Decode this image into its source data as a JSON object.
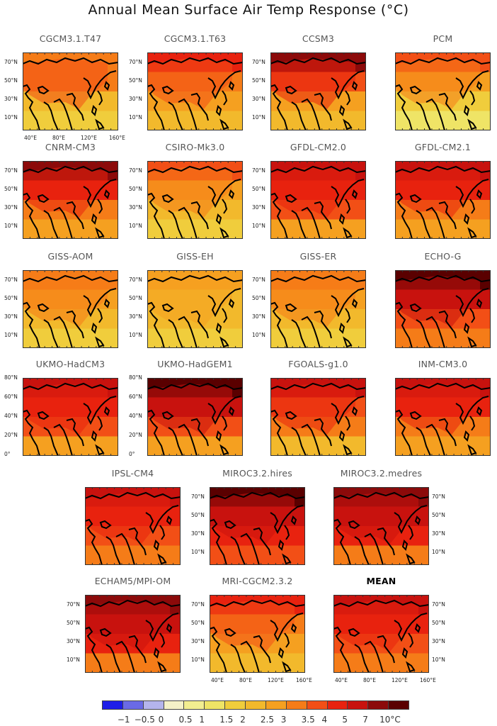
{
  "title": "Annual Mean Surface Air Temp Response (°C)",
  "colors": {
    "scale": [
      "#1e1ee8",
      "#6a6ae6",
      "#b4b4ec",
      "#f4f1c8",
      "#f2ee90",
      "#efe466",
      "#f0cd3c",
      "#f2b92c",
      "#f5a020",
      "#f57c18",
      "#f24f16",
      "#e8220f",
      "#c8120e",
      "#8c0a0a",
      "#5a0000"
    ],
    "coast": "#000000"
  },
  "colorbar": {
    "labels": [
      "−1",
      "−0.5",
      "0",
      "0.5",
      "1",
      "1.5",
      "2",
      "2.5",
      "3",
      "3.5",
      "4",
      "5",
      "7",
      "10°C"
    ]
  },
  "chart_data": [
    {
      "type": "heatmap",
      "title": "CGCM3.1.T47",
      "ylabels": [
        "70°N",
        "50°N",
        "30°N",
        "10°N"
      ],
      "xlabels": [
        "40°E",
        "80°E",
        "120°E",
        "160°E"
      ],
      "levels": [
        3,
        3,
        2,
        1.5
      ],
      "mean_level": "2-3"
    },
    {
      "type": "heatmap",
      "title": "CGCM3.1.T63",
      "ylabels": [
        "70°N",
        "50°N",
        "30°N",
        "10°N"
      ],
      "xlabels": [],
      "levels": [
        4,
        3,
        2.5,
        2
      ],
      "mean_level": "2.5-3.5"
    },
    {
      "type": "heatmap",
      "title": "CCSM3",
      "ylabels": [
        "70°N",
        "50°N",
        "30°N",
        "10°N"
      ],
      "xlabels": [],
      "levels": [
        7,
        3.5,
        2.5,
        2
      ],
      "mean_level": "2.5-4"
    },
    {
      "type": "heatmap",
      "title": "PCM",
      "ylabels": [],
      "xlabels": [],
      "levels": [
        3.5,
        2.5,
        1.5,
        1
      ],
      "mean_level": "1.5-2.5"
    },
    {
      "type": "heatmap",
      "title": "CNRM-CM3",
      "ylabels": [
        "70°N",
        "50°N",
        "30°N",
        "10°N"
      ],
      "xlabels": [],
      "levels": [
        7,
        4,
        3,
        2.5
      ],
      "mean_level": "3-4"
    },
    {
      "type": "heatmap",
      "title": "CSIRO-Mk3.0",
      "ylabels": [
        "70°N",
        "50°N",
        "30°N",
        "10°N"
      ],
      "xlabels": [],
      "levels": [
        3.5,
        2.5,
        2,
        1.5
      ],
      "mean_level": "2-3"
    },
    {
      "type": "heatmap",
      "title": "GFDL-CM2.0",
      "ylabels": [
        "70°N",
        "50°N",
        "30°N",
        "10°N"
      ],
      "xlabels": [],
      "levels": [
        5,
        4,
        3.5,
        2.5
      ],
      "mean_level": "3-4"
    },
    {
      "type": "heatmap",
      "title": "GFDL-CM2.1",
      "ylabels": [],
      "xlabels": [],
      "levels": [
        5,
        4,
        3,
        2.5
      ],
      "mean_level": "3-4"
    },
    {
      "type": "heatmap",
      "title": "GISS-AOM",
      "ylabels": [
        "70°N",
        "50°N",
        "30°N",
        "10°N"
      ],
      "xlabels": [],
      "levels": [
        3,
        2.5,
        2,
        1.5
      ],
      "mean_level": "2-2.5"
    },
    {
      "type": "heatmap",
      "title": "GISS-EH",
      "ylabels": [
        "70°N",
        "50°N",
        "30°N",
        "10°N"
      ],
      "xlabels": [],
      "levels": [
        2.5,
        2,
        2,
        1.5
      ],
      "mean_level": "1.5-2.5"
    },
    {
      "type": "heatmap",
      "title": "GISS-ER",
      "ylabels": [
        "70°N",
        "50°N",
        "30°N",
        "10°N"
      ],
      "xlabels": [],
      "levels": [
        3,
        2.5,
        2,
        1.5
      ],
      "mean_level": "2-2.5"
    },
    {
      "type": "heatmap",
      "title": "ECHO-G",
      "ylabels": [],
      "xlabels": [],
      "levels": [
        10,
        5,
        3.5,
        3
      ],
      "mean_level": "3.5-5"
    },
    {
      "type": "heatmap",
      "title": "UKMO-HadCM3",
      "ylabels": [
        "80°N",
        "60°N",
        "40°N",
        "20°N",
        "0°"
      ],
      "xlabels": [],
      "levels": [
        5,
        4,
        3.5,
        2.5
      ],
      "mean_level": "3-4"
    },
    {
      "type": "heatmap",
      "title": "UKMO-HadGEM1",
      "ylabels": [
        "80°N",
        "60°N",
        "40°N",
        "20°N",
        "0°"
      ],
      "xlabels": [],
      "levels": [
        10,
        5,
        3.5,
        2.5
      ],
      "mean_level": "3.5-5"
    },
    {
      "type": "heatmap",
      "title": "FGOALS-g1.0",
      "ylabels": [],
      "xlabels": [],
      "levels": [
        5,
        3.5,
        3,
        2
      ],
      "mean_level": "2.5-3.5"
    },
    {
      "type": "heatmap",
      "title": "INM-CM3.0",
      "ylabels": [],
      "xlabels": [],
      "levels": [
        5,
        4,
        3,
        2.5
      ],
      "mean_level": "3-4"
    },
    {
      "type": "heatmap",
      "title": "IPSL-CM4",
      "ylabels": [],
      "xlabels": [],
      "levels": [
        5,
        4,
        3.5,
        3
      ],
      "mean_level": "3.5-4"
    },
    {
      "type": "heatmap",
      "title": "MIROC3.2.hires",
      "ylabels": [
        "70°N",
        "50°N",
        "30°N",
        "10°N"
      ],
      "xlabels": [],
      "levels": [
        10,
        5,
        4,
        3.5
      ],
      "mean_level": "4-5"
    },
    {
      "type": "heatmap",
      "title": "MIROC3.2.medres",
      "ylabels": [
        "70°N",
        "50°N",
        "30°N",
        "10°N"
      ],
      "xlabels": [],
      "levels": [
        7,
        5,
        4,
        3
      ],
      "mean_level": "3.5-5"
    },
    {
      "type": "heatmap",
      "title": "ECHAM5/MPI-OM",
      "ylabels": [
        "70°N",
        "50°N",
        "30°N",
        "10°N"
      ],
      "xlabels": [],
      "levels": [
        7,
        5,
        4,
        3
      ],
      "mean_level": "3.5-5"
    },
    {
      "type": "heatmap",
      "title": "MRI-CGCM2.3.2",
      "ylabels": [
        "70°N",
        "50°N",
        "30°N",
        "10°N"
      ],
      "xlabels": [
        "40°E",
        "80°E",
        "120°E",
        "160°E"
      ],
      "levels": [
        4,
        3,
        2.5,
        2
      ],
      "mean_level": "2.5-3"
    },
    {
      "type": "heatmap",
      "title": "MEAN",
      "ylabels": [
        "70°N",
        "50°N",
        "30°N",
        "10°N"
      ],
      "xlabels": [
        "40°E",
        "80°E",
        "120°E",
        "160°E"
      ],
      "levels": [
        5,
        4,
        3.5,
        3
      ],
      "mean_level": "3-4"
    }
  ]
}
